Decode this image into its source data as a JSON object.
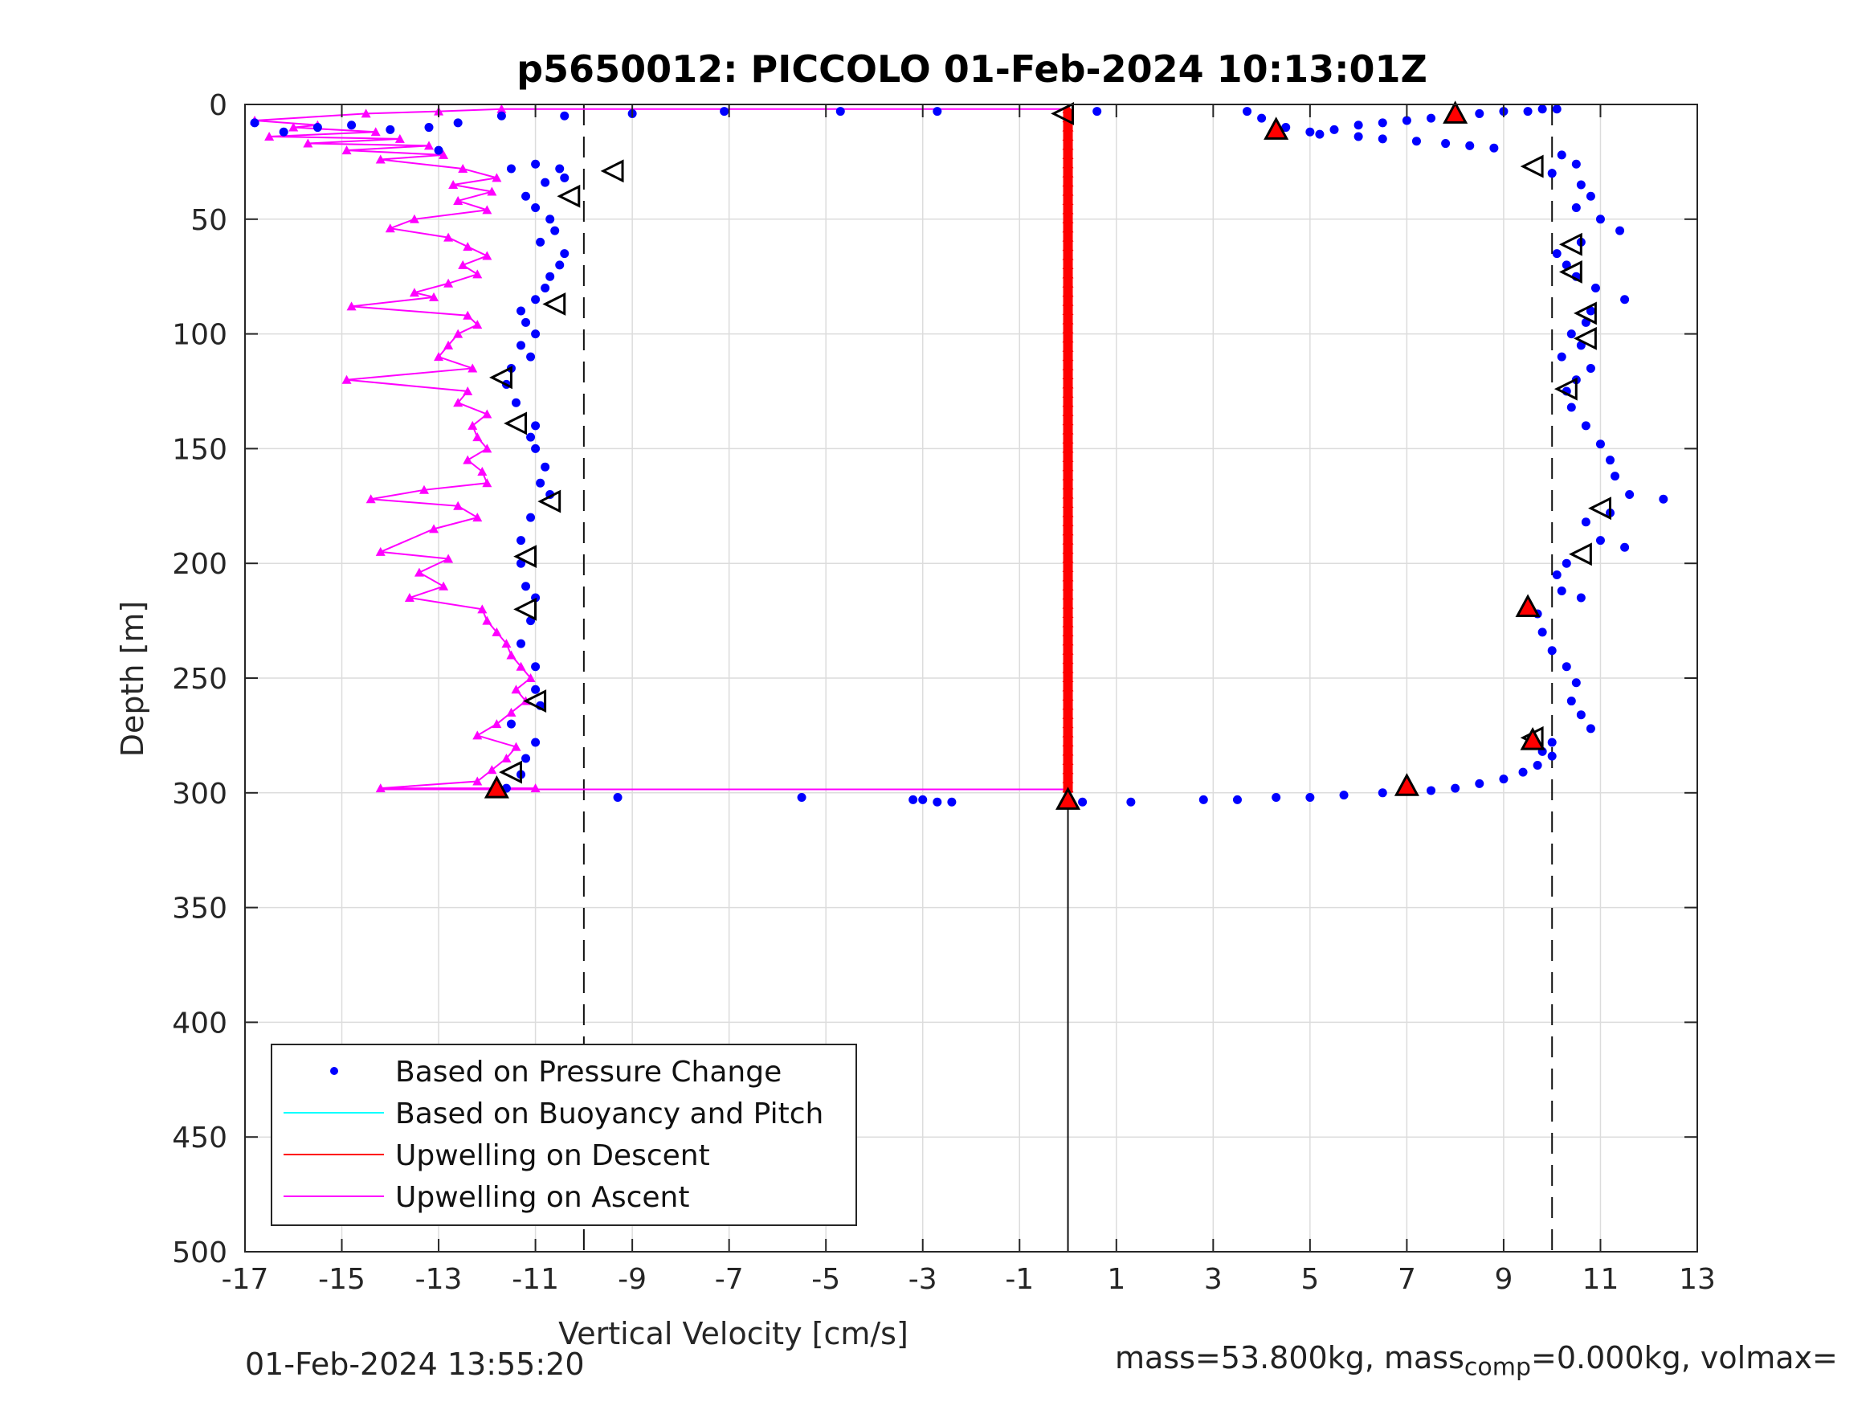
{
  "chart_data": {
    "type": "scatter",
    "title": "p5650012: PICCOLO 01-Feb-2024 10:13:01Z",
    "xlabel": "Vertical Velocity [cm/s]",
    "ylabel": "Depth [m]",
    "xlim": [
      -17,
      13
    ],
    "ylim": [
      0,
      500
    ],
    "y_reversed": true,
    "grid": true,
    "x_ticks": [
      "-17",
      "-15",
      "-13",
      "-11",
      "-9",
      "-7",
      "-5",
      "-3",
      "-1",
      "1",
      "3",
      "5",
      "7",
      "9",
      "11",
      "13"
    ],
    "y_ticks": [
      "0",
      "50",
      "100",
      "150",
      "200",
      "250",
      "300",
      "350",
      "400",
      "450",
      "500"
    ],
    "reference_lines": [
      {
        "x": -10,
        "style": "dashed"
      },
      {
        "x": 10,
        "style": "dashed"
      },
      {
        "x": 0,
        "style": "solid",
        "ymin": 300
      }
    ],
    "legend": {
      "position": "bottom-left",
      "entries": [
        {
          "label": "Based on Pressure Change",
          "color": "#0000ff",
          "marker": "dot"
        },
        {
          "label": "Based on Buoyancy and Pitch",
          "color": "#00ffff",
          "marker": "line"
        },
        {
          "label": "Upwelling on Descent",
          "color": "#ff0000",
          "marker": "line"
        },
        {
          "label": "Upwelling on Ascent",
          "color": "#ff00ff",
          "marker": "line"
        }
      ]
    },
    "series": [
      {
        "name": "Based on Pressure Change",
        "color": "#0000ff",
        "points": [
          [
            -16.8,
            8
          ],
          [
            -16.2,
            12
          ],
          [
            -15.5,
            10
          ],
          [
            -14.8,
            9
          ],
          [
            -14,
            11
          ],
          [
            -13.2,
            10
          ],
          [
            -12.6,
            8
          ],
          [
            -11.7,
            5
          ],
          [
            -10.4,
            5
          ],
          [
            -9.0,
            4
          ],
          [
            -7.1,
            3
          ],
          [
            -4.7,
            3
          ],
          [
            -2.7,
            3
          ],
          [
            0.6,
            3
          ],
          [
            -13.0,
            20
          ],
          [
            -11.5,
            28
          ],
          [
            -11.0,
            26
          ],
          [
            -10.5,
            28
          ],
          [
            -10.4,
            32
          ],
          [
            -10.8,
            34
          ],
          [
            -11.2,
            40
          ],
          [
            -11.0,
            45
          ],
          [
            -10.7,
            50
          ],
          [
            -10.6,
            55
          ],
          [
            -10.9,
            60
          ],
          [
            -10.4,
            65
          ],
          [
            -10.5,
            70
          ],
          [
            -10.7,
            75
          ],
          [
            -10.8,
            80
          ],
          [
            -11.0,
            85
          ],
          [
            -11.3,
            90
          ],
          [
            -11.2,
            95
          ],
          [
            -11.0,
            100
          ],
          [
            -11.3,
            105
          ],
          [
            -11.1,
            110
          ],
          [
            -11.5,
            115
          ],
          [
            -11.6,
            122
          ],
          [
            -11.4,
            130
          ],
          [
            -11.0,
            140
          ],
          [
            -11.1,
            145
          ],
          [
            -11.0,
            150
          ],
          [
            -10.8,
            158
          ],
          [
            -10.9,
            165
          ],
          [
            -10.7,
            170
          ],
          [
            -11.1,
            180
          ],
          [
            -11.3,
            190
          ],
          [
            -11.3,
            200
          ],
          [
            -11.2,
            210
          ],
          [
            -11.0,
            215
          ],
          [
            -11.1,
            225
          ],
          [
            -11.3,
            235
          ],
          [
            -11.0,
            245
          ],
          [
            -11.0,
            255
          ],
          [
            -10.9,
            262
          ],
          [
            -11.5,
            270
          ],
          [
            -11.0,
            278
          ],
          [
            -11.2,
            285
          ],
          [
            -11.3,
            292
          ],
          [
            -11.6,
            298
          ],
          [
            -9.3,
            302
          ],
          [
            -5.5,
            302
          ],
          [
            -3.2,
            303
          ],
          [
            -3.0,
            303
          ],
          [
            -2.7,
            304
          ],
          [
            -2.4,
            304
          ],
          [
            0.3,
            304
          ],
          [
            1.3,
            304
          ],
          [
            2.8,
            303
          ],
          [
            3.5,
            303
          ],
          [
            4.3,
            302
          ],
          [
            5.0,
            302
          ],
          [
            5.7,
            301
          ],
          [
            6.5,
            300
          ],
          [
            7.5,
            299
          ],
          [
            8.0,
            298
          ],
          [
            8.5,
            296
          ],
          [
            9.0,
            294
          ],
          [
            9.4,
            291
          ],
          [
            9.7,
            288
          ],
          [
            10.0,
            284
          ],
          [
            3.7,
            3
          ],
          [
            4.0,
            6
          ],
          [
            4.5,
            10
          ],
          [
            5.0,
            12
          ],
          [
            5.5,
            11
          ],
          [
            6.0,
            9
          ],
          [
            6.5,
            8
          ],
          [
            7.0,
            7
          ],
          [
            7.5,
            6
          ],
          [
            8.0,
            5
          ],
          [
            8.5,
            4
          ],
          [
            9.0,
            3
          ],
          [
            9.5,
            3
          ],
          [
            9.8,
            2
          ],
          [
            10.1,
            2
          ],
          [
            5.2,
            13
          ],
          [
            6.0,
            14
          ],
          [
            6.5,
            15
          ],
          [
            7.2,
            16
          ],
          [
            7.8,
            17
          ],
          [
            8.3,
            18
          ],
          [
            8.8,
            19
          ],
          [
            10.2,
            22
          ],
          [
            10.5,
            26
          ],
          [
            10.0,
            30
          ],
          [
            10.6,
            35
          ],
          [
            10.8,
            40
          ],
          [
            10.5,
            45
          ],
          [
            11.0,
            50
          ],
          [
            11.4,
            55
          ],
          [
            10.6,
            60
          ],
          [
            10.1,
            65
          ],
          [
            10.3,
            70
          ],
          [
            10.5,
            75
          ],
          [
            10.9,
            80
          ],
          [
            11.5,
            85
          ],
          [
            10.8,
            90
          ],
          [
            10.7,
            95
          ],
          [
            10.4,
            100
          ],
          [
            10.6,
            105
          ],
          [
            10.2,
            110
          ],
          [
            10.8,
            115
          ],
          [
            10.5,
            120
          ],
          [
            10.3,
            125
          ],
          [
            10.4,
            132
          ],
          [
            10.7,
            140
          ],
          [
            11.0,
            148
          ],
          [
            11.2,
            155
          ],
          [
            11.3,
            162
          ],
          [
            11.6,
            170
          ],
          [
            12.3,
            172
          ],
          [
            11.2,
            178
          ],
          [
            10.7,
            182
          ],
          [
            11.0,
            190
          ],
          [
            11.5,
            193
          ],
          [
            10.3,
            200
          ],
          [
            10.1,
            205
          ],
          [
            10.2,
            212
          ],
          [
            10.6,
            215
          ],
          [
            9.7,
            222
          ],
          [
            9.8,
            230
          ],
          [
            10.0,
            238
          ],
          [
            10.3,
            245
          ],
          [
            10.5,
            252
          ],
          [
            10.4,
            260
          ],
          [
            10.6,
            266
          ],
          [
            10.8,
            272
          ],
          [
            10.0,
            278
          ],
          [
            9.8,
            282
          ]
        ]
      },
      {
        "name": "Upwelling on Descent",
        "color": "#ff0000",
        "description_of_values": "near 0 across 2–300 m",
        "points": [
          [
            0,
            2
          ],
          [
            0,
            50
          ],
          [
            0,
            100
          ],
          [
            0,
            150
          ],
          [
            0,
            200
          ],
          [
            0,
            250
          ],
          [
            0,
            300
          ]
        ]
      },
      {
        "name": "Upwelling on Ascent",
        "color": "#ff00ff",
        "points": [
          [
            -11.7,
            2
          ],
          [
            -13.0,
            3
          ],
          [
            -14.5,
            4
          ],
          [
            -16.8,
            7
          ],
          [
            -15.5,
            9
          ],
          [
            -16.0,
            10
          ],
          [
            -14.3,
            12
          ],
          [
            -16.5,
            14
          ],
          [
            -13.8,
            15
          ],
          [
            -15.7,
            17
          ],
          [
            -13.2,
            18
          ],
          [
            -14.9,
            20
          ],
          [
            -12.9,
            22
          ],
          [
            -14.2,
            24
          ],
          [
            -12.5,
            28
          ],
          [
            -11.8,
            32
          ],
          [
            -12.7,
            35
          ],
          [
            -11.9,
            38
          ],
          [
            -12.6,
            42
          ],
          [
            -12.0,
            46
          ],
          [
            -13.5,
            50
          ],
          [
            -14.0,
            54
          ],
          [
            -12.8,
            58
          ],
          [
            -12.4,
            62
          ],
          [
            -12.0,
            66
          ],
          [
            -12.5,
            70
          ],
          [
            -12.2,
            74
          ],
          [
            -12.8,
            78
          ],
          [
            -13.5,
            82
          ],
          [
            -13.1,
            84
          ],
          [
            -14.8,
            88
          ],
          [
            -12.4,
            92
          ],
          [
            -12.2,
            96
          ],
          [
            -12.6,
            100
          ],
          [
            -12.8,
            105
          ],
          [
            -13.0,
            110
          ],
          [
            -12.3,
            115
          ],
          [
            -14.9,
            120
          ],
          [
            -12.4,
            125
          ],
          [
            -12.6,
            130
          ],
          [
            -12.0,
            135
          ],
          [
            -12.3,
            140
          ],
          [
            -12.2,
            145
          ],
          [
            -12.0,
            150
          ],
          [
            -12.4,
            155
          ],
          [
            -12.1,
            160
          ],
          [
            -12.0,
            165
          ],
          [
            -13.3,
            168
          ],
          [
            -14.4,
            172
          ],
          [
            -12.6,
            175
          ],
          [
            -12.2,
            180
          ],
          [
            -13.1,
            185
          ],
          [
            -14.2,
            195
          ],
          [
            -12.8,
            198
          ],
          [
            -13.4,
            204
          ],
          [
            -12.9,
            210
          ],
          [
            -13.6,
            215
          ],
          [
            -12.1,
            220
          ],
          [
            -12.0,
            225
          ],
          [
            -11.8,
            230
          ],
          [
            -11.6,
            235
          ],
          [
            -11.5,
            240
          ],
          [
            -11.3,
            245
          ],
          [
            -11.1,
            250
          ],
          [
            -11.4,
            255
          ],
          [
            -11.2,
            260
          ],
          [
            -11.5,
            265
          ],
          [
            -11.8,
            270
          ],
          [
            -12.2,
            275
          ],
          [
            -11.4,
            280
          ],
          [
            -11.6,
            285
          ],
          [
            -11.9,
            290
          ],
          [
            -12.2,
            295
          ],
          [
            -14.2,
            298
          ],
          [
            -11.0,
            298
          ]
        ]
      }
    ],
    "markers": {
      "open_triangles": [
        [
          -9.4,
          29
        ],
        [
          -10.3,
          40
        ],
        [
          -10.6,
          87
        ],
        [
          -11.7,
          119
        ],
        [
          -11.4,
          139
        ],
        [
          -10.7,
          173
        ],
        [
          -11.2,
          197
        ],
        [
          -11.2,
          220
        ],
        [
          -11.0,
          260
        ],
        [
          -11.5,
          291
        ],
        [
          -0.1,
          4
        ],
        [
          9.6,
          27
        ],
        [
          10.4,
          61
        ],
        [
          10.4,
          73
        ],
        [
          10.7,
          91
        ],
        [
          10.7,
          102
        ],
        [
          10.3,
          124
        ],
        [
          11.0,
          176
        ],
        [
          10.6,
          196
        ],
        [
          9.6,
          276
        ]
      ],
      "filled_red_triangles": [
        [
          -11.8,
          298
        ],
        [
          0.0,
          303
        ],
        [
          4.3,
          11
        ],
        [
          8.0,
          4
        ],
        [
          9.5,
          219
        ],
        [
          7.0,
          297
        ],
        [
          9.6,
          277
        ]
      ]
    }
  },
  "footer": {
    "timestamp": "01-Feb-2024 13:55:20",
    "mass_label": "mass=53.800kg, mass",
    "mass_sub": "comp",
    "mass_tail": "=0.000kg, volmax="
  }
}
